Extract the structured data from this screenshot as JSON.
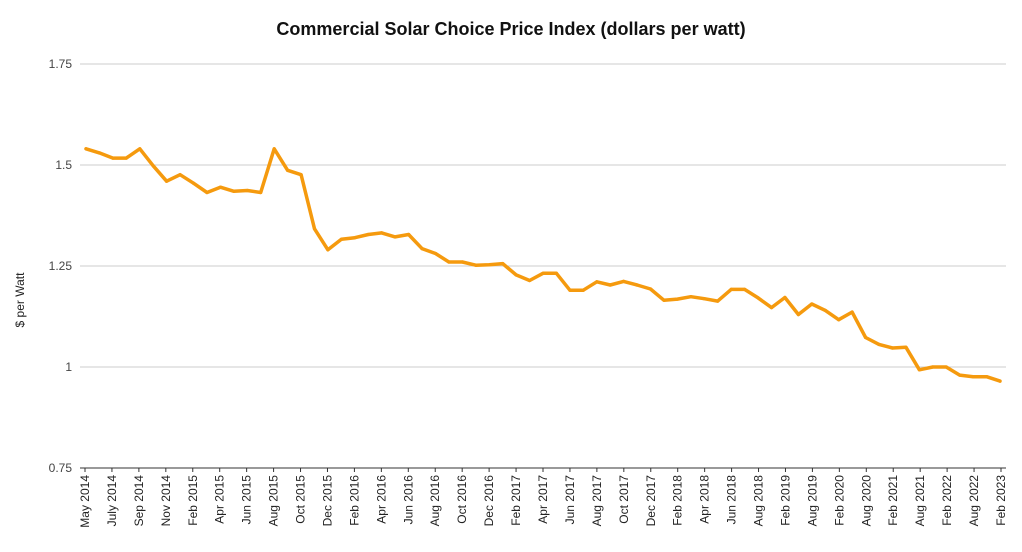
{
  "chart_data": {
    "type": "line",
    "title": "Commercial Solar Choice Price Index (dollars per watt)",
    "xlabel": "",
    "ylabel": "$ per Watt",
    "ylim": [
      0.75,
      1.75
    ],
    "yticks": [
      {
        "value": 0.75,
        "label": "0.75"
      },
      {
        "value": 1.0,
        "label": "1"
      },
      {
        "value": 1.25,
        "label": "1.25"
      },
      {
        "value": 1.5,
        "label": "1.5"
      },
      {
        "value": 1.75,
        "label": "1.75"
      }
    ],
    "x_tick_labels": [
      "May 2014",
      "July 2014",
      "Sep 2014",
      "Nov 2014",
      "Feb 2015",
      "Apr 2015",
      "Jun 2015",
      "Aug 2015",
      "Oct 2015",
      "Dec 2015",
      "Feb 2016",
      "Apr 2016",
      "Jun 2016",
      "Aug 2016",
      "Oct 2016",
      "Dec 2016",
      "Feb 2017",
      "Apr 2017",
      "Jun 2017",
      "Aug 2017",
      "Oct 2017",
      "Dec 2017",
      "Feb 2018",
      "Apr 2018",
      "Jun 2018",
      "Aug 2018",
      "Feb 2019",
      "Aug 2019",
      "Feb 2020",
      "Aug 2020",
      "Feb 2021",
      "Aug 2021",
      "Feb 2022",
      "Aug 2022",
      "Feb 2023"
    ],
    "grid": true,
    "legend": "none",
    "series": [
      {
        "color": "#f59a0e",
        "values": [
          1.54,
          1.53,
          1.517,
          1.517,
          1.54,
          1.498,
          1.46,
          1.476,
          1.455,
          1.432,
          1.445,
          1.435,
          1.437,
          1.432,
          1.54,
          1.487,
          1.476,
          1.342,
          1.29,
          1.316,
          1.32,
          1.328,
          1.332,
          1.322,
          1.328,
          1.293,
          1.281,
          1.26,
          1.26,
          1.252,
          1.253,
          1.256,
          1.228,
          1.214,
          1.232,
          1.232,
          1.19,
          1.19,
          1.211,
          1.203,
          1.212,
          1.203,
          1.193,
          1.165,
          1.168,
          1.174,
          1.169,
          1.163,
          1.192,
          1.192,
          1.171,
          1.147,
          1.172,
          1.13,
          1.156,
          1.14,
          1.117,
          1.136,
          1.073,
          1.056,
          1.047,
          1.049,
          0.993,
          1.0,
          1.0,
          0.98,
          0.976,
          0.976,
          0.965
        ]
      }
    ]
  }
}
